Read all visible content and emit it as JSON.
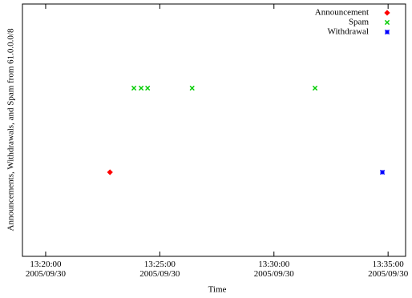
{
  "chart_data": {
    "type": "scatter",
    "x_label": "Time",
    "y_label": "Announcements, Withdrawals, and Spam from 61.0.0.0/8",
    "xlim": [
      "2005-09-30 13:18:59",
      "2005-09-30 13:35:46"
    ],
    "xticks": [
      {
        "value": "2005-09-30 13:20:00",
        "label": "13:20:00\n2005/09/30"
      },
      {
        "value": "2005-09-30 13:25:00",
        "label": "13:25:00\n2005/09/30"
      },
      {
        "value": "2005-09-30 13:30:00",
        "label": "13:30:00\n2005/09/30"
      },
      {
        "value": "2005-09-30 13:35:00",
        "label": "13:35:00\n2005/09/30"
      }
    ],
    "ylim": [
      0,
      3
    ],
    "legend": "top-right",
    "series": [
      {
        "name": "Announcement",
        "color": "#ff0000",
        "marker": "diamond",
        "x": [
          "2005-09-30 13:22:49"
        ],
        "values": [
          1
        ]
      },
      {
        "name": "Spam",
        "color": "#00cc00",
        "marker": "cross",
        "x": [
          "2005-09-30 13:23:52",
          "2005-09-30 13:24:11",
          "2005-09-30 13:24:28",
          "2005-09-30 13:26:25",
          "2005-09-30 13:31:48"
        ],
        "values": [
          2,
          2,
          2,
          2,
          2
        ]
      },
      {
        "name": "Withdrawal",
        "color": "#0000ff",
        "marker": "star",
        "x": [
          "2005-09-30 13:34:45"
        ],
        "values": [
          1
        ]
      }
    ]
  }
}
